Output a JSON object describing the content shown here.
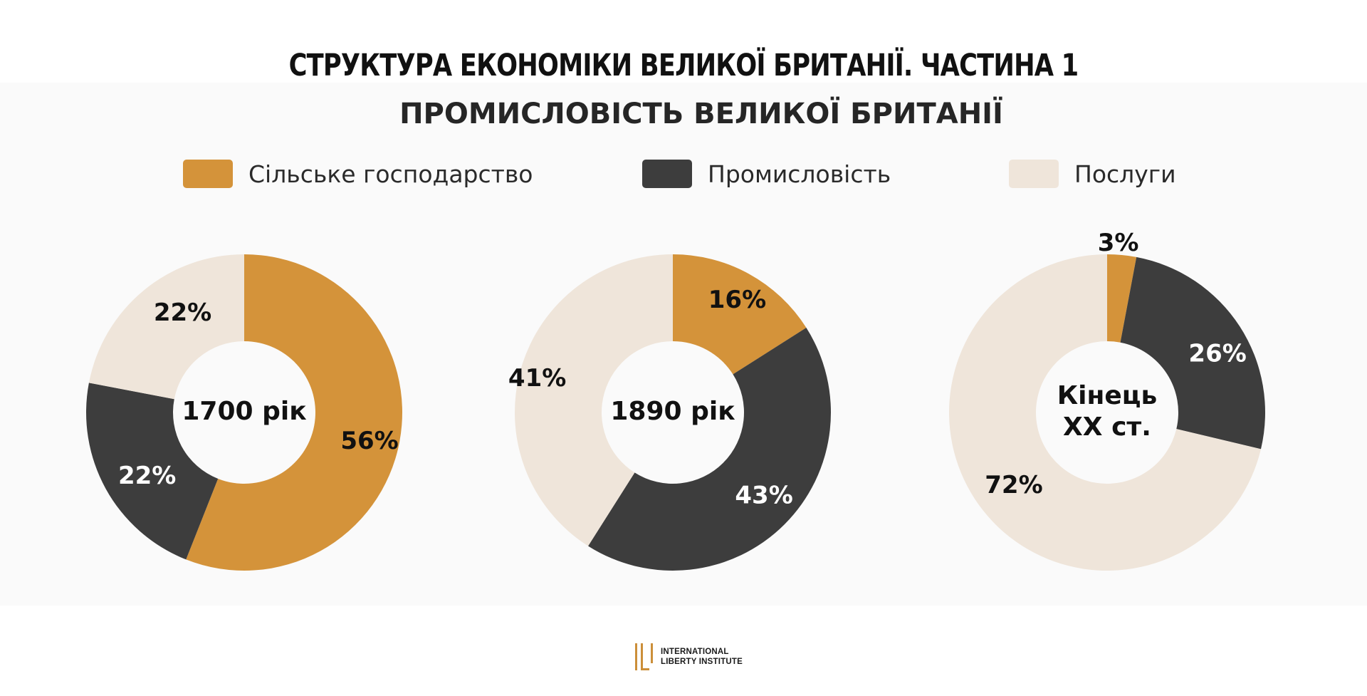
{
  "title": "СТРУКТУРА ЕКОНОМІКИ ВЕЛИКОЇ БРИТАНІЇ. ЧАСТИНА 1",
  "colors": {
    "agriculture": "#d4933a",
    "industry": "#3d3d3d",
    "services": "#efe5da",
    "brand": "#cc8f3a"
  },
  "logo": {
    "line1": "INTERNATIONAL",
    "line2": "LIBERTY INSTITUTE"
  },
  "chart_data": {
    "type": "pie",
    "variant": "donut",
    "title": "ПРОМИСЛОВІСТЬ ВЕЛИКОЇ БРИТАНІЇ",
    "legend_placement": "top",
    "categories": [
      "Сільське господарство",
      "Промисловість",
      "Послуги"
    ],
    "charts": [
      {
        "center_label": [
          "1700 рік"
        ],
        "values": [
          56,
          22,
          22
        ],
        "value_labels": [
          "56%",
          "22%",
          "22%"
        ]
      },
      {
        "center_label": [
          "1890 рік"
        ],
        "values": [
          16,
          43,
          41
        ],
        "value_labels": [
          "16%",
          "43%",
          "41%"
        ]
      },
      {
        "center_label": [
          "Кінець",
          "XX ст."
        ],
        "values": [
          3,
          26,
          72
        ],
        "value_labels": [
          "3%",
          "26%",
          "72%"
        ]
      }
    ]
  }
}
